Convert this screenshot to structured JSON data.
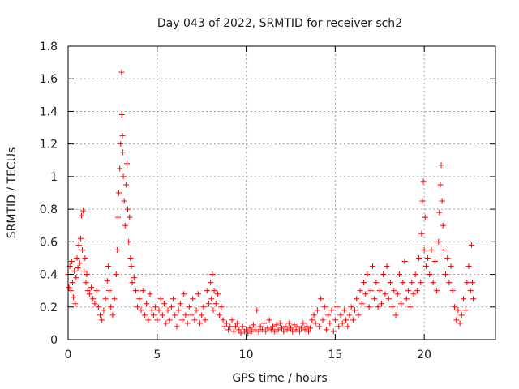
{
  "chart_data": {
    "type": "scatter",
    "title": "Day 043 of 2022, SRMTID for receiver sch2",
    "xlabel": "GPS time / hours",
    "ylabel": "SRMTID / TECUs",
    "xlim": [
      0,
      24
    ],
    "ylim": [
      0,
      1.8
    ],
    "xticks": [
      0,
      5,
      10,
      15,
      20
    ],
    "xtick_labels": [
      "0",
      "5",
      "10",
      "15",
      "20"
    ],
    "yticks": [
      0,
      0.2,
      0.4,
      0.6,
      0.8,
      1.0,
      1.2,
      1.4,
      1.6,
      1.8
    ],
    "ytick_labels": [
      "0",
      "0.2",
      "0.4",
      "0.6",
      "0.8",
      "1",
      "1.2",
      "1.4",
      "1.6",
      "1.8"
    ],
    "grid": true,
    "marker": "+",
    "series": [
      {
        "name": "SRMTID",
        "color": "#ff0000",
        "points": [
          [
            0.0,
            0.4
          ],
          [
            0.05,
            0.32
          ],
          [
            0.1,
            0.45
          ],
          [
            0.15,
            0.3
          ],
          [
            0.2,
            0.48
          ],
          [
            0.25,
            0.35
          ],
          [
            0.3,
            0.26
          ],
          [
            0.35,
            0.42
          ],
          [
            0.4,
            0.22
          ],
          [
            0.45,
            0.38
          ],
          [
            0.5,
            0.5
          ],
          [
            0.55,
            0.44
          ],
          [
            0.6,
            0.58
          ],
          [
            0.65,
            0.47
          ],
          [
            0.7,
            0.62
          ],
          [
            0.75,
            0.76
          ],
          [
            0.8,
            0.55
          ],
          [
            0.85,
            0.79
          ],
          [
            0.9,
            0.42
          ],
          [
            0.95,
            0.5
          ],
          [
            1.0,
            0.35
          ],
          [
            1.05,
            0.4
          ],
          [
            1.1,
            0.3
          ],
          [
            1.2,
            0.28
          ],
          [
            1.3,
            0.32
          ],
          [
            1.4,
            0.25
          ],
          [
            1.5,
            0.22
          ],
          [
            1.6,
            0.3
          ],
          [
            1.7,
            0.2
          ],
          [
            1.8,
            0.15
          ],
          [
            1.9,
            0.12
          ],
          [
            2.0,
            0.18
          ],
          [
            2.1,
            0.25
          ],
          [
            2.2,
            0.36
          ],
          [
            2.25,
            0.45
          ],
          [
            2.3,
            0.3
          ],
          [
            2.4,
            0.2
          ],
          [
            2.5,
            0.15
          ],
          [
            2.6,
            0.25
          ],
          [
            2.7,
            0.4
          ],
          [
            2.75,
            0.55
          ],
          [
            2.8,
            0.75
          ],
          [
            2.85,
            0.9
          ],
          [
            2.9,
            1.05
          ],
          [
            2.95,
            1.2
          ],
          [
            3.0,
            1.64
          ],
          [
            3.02,
            1.38
          ],
          [
            3.05,
            1.25
          ],
          [
            3.08,
            1.15
          ],
          [
            3.1,
            1.0
          ],
          [
            3.15,
            0.85
          ],
          [
            3.2,
            0.7
          ],
          [
            3.25,
            0.95
          ],
          [
            3.3,
            1.08
          ],
          [
            3.35,
            0.8
          ],
          [
            3.4,
            0.6
          ],
          [
            3.45,
            0.75
          ],
          [
            3.5,
            0.5
          ],
          [
            3.55,
            0.45
          ],
          [
            3.6,
            0.35
          ],
          [
            3.7,
            0.38
          ],
          [
            3.8,
            0.3
          ],
          [
            3.9,
            0.2
          ],
          [
            4.0,
            0.25
          ],
          [
            4.1,
            0.18
          ],
          [
            4.2,
            0.3
          ],
          [
            4.3,
            0.15
          ],
          [
            4.4,
            0.22
          ],
          [
            4.5,
            0.12
          ],
          [
            4.6,
            0.28
          ],
          [
            4.7,
            0.18
          ],
          [
            4.8,
            0.15
          ],
          [
            4.9,
            0.2
          ],
          [
            5.0,
            0.12
          ],
          [
            5.1,
            0.18
          ],
          [
            5.2,
            0.25
          ],
          [
            5.3,
            0.15
          ],
          [
            5.4,
            0.22
          ],
          [
            5.5,
            0.1
          ],
          [
            5.6,
            0.18
          ],
          [
            5.7,
            0.12
          ],
          [
            5.8,
            0.2
          ],
          [
            5.9,
            0.25
          ],
          [
            6.0,
            0.15
          ],
          [
            6.1,
            0.08
          ],
          [
            6.2,
            0.18
          ],
          [
            6.3,
            0.22
          ],
          [
            6.4,
            0.12
          ],
          [
            6.5,
            0.28
          ],
          [
            6.6,
            0.15
          ],
          [
            6.7,
            0.1
          ],
          [
            6.8,
            0.2
          ],
          [
            6.9,
            0.15
          ],
          [
            7.0,
            0.25
          ],
          [
            7.1,
            0.12
          ],
          [
            7.2,
            0.18
          ],
          [
            7.3,
            0.28
          ],
          [
            7.4,
            0.1
          ],
          [
            7.5,
            0.15
          ],
          [
            7.6,
            0.2
          ],
          [
            7.7,
            0.12
          ],
          [
            7.8,
            0.3
          ],
          [
            7.9,
            0.22
          ],
          [
            8.0,
            0.35
          ],
          [
            8.05,
            0.25
          ],
          [
            8.1,
            0.4
          ],
          [
            8.15,
            0.18
          ],
          [
            8.2,
            0.3
          ],
          [
            8.3,
            0.22
          ],
          [
            8.4,
            0.28
          ],
          [
            8.5,
            0.15
          ],
          [
            8.6,
            0.2
          ],
          [
            8.7,
            0.12
          ],
          [
            8.8,
            0.08
          ],
          [
            8.9,
            0.1
          ],
          [
            9.0,
            0.06
          ],
          [
            9.1,
            0.08
          ],
          [
            9.2,
            0.12
          ],
          [
            9.3,
            0.05
          ],
          [
            9.4,
            0.08
          ],
          [
            9.5,
            0.1
          ],
          [
            9.6,
            0.06
          ],
          [
            9.7,
            0.04
          ],
          [
            9.8,
            0.08
          ],
          [
            9.9,
            0.05
          ],
          [
            10.0,
            0.06
          ],
          [
            10.1,
            0.04
          ],
          [
            10.2,
            0.07
          ],
          [
            10.3,
            0.05
          ],
          [
            10.4,
            0.09
          ],
          [
            10.5,
            0.06
          ],
          [
            10.6,
            0.18
          ],
          [
            10.7,
            0.05
          ],
          [
            10.8,
            0.08
          ],
          [
            10.9,
            0.06
          ],
          [
            11.0,
            0.1
          ],
          [
            11.1,
            0.05
          ],
          [
            11.2,
            0.07
          ],
          [
            11.3,
            0.12
          ],
          [
            11.4,
            0.06
          ],
          [
            11.5,
            0.08
          ],
          [
            11.6,
            0.05
          ],
          [
            11.7,
            0.09
          ],
          [
            11.8,
            0.06
          ],
          [
            11.9,
            0.1
          ],
          [
            12.0,
            0.07
          ],
          [
            12.1,
            0.05
          ],
          [
            12.2,
            0.08
          ],
          [
            12.3,
            0.06
          ],
          [
            12.4,
            0.1
          ],
          [
            12.5,
            0.07
          ],
          [
            12.6,
            0.05
          ],
          [
            12.7,
            0.09
          ],
          [
            12.8,
            0.06
          ],
          [
            12.9,
            0.08
          ],
          [
            13.0,
            0.05
          ],
          [
            13.1,
            0.07
          ],
          [
            13.2,
            0.1
          ],
          [
            13.3,
            0.06
          ],
          [
            13.4,
            0.08
          ],
          [
            13.5,
            0.05
          ],
          [
            13.6,
            0.07
          ],
          [
            13.7,
            0.12
          ],
          [
            13.8,
            0.15
          ],
          [
            13.9,
            0.1
          ],
          [
            14.0,
            0.18
          ],
          [
            14.1,
            0.08
          ],
          [
            14.2,
            0.25
          ],
          [
            14.3,
            0.12
          ],
          [
            14.4,
            0.2
          ],
          [
            14.5,
            0.06
          ],
          [
            14.6,
            0.15
          ],
          [
            14.7,
            0.1
          ],
          [
            14.8,
            0.18
          ],
          [
            14.9,
            0.05
          ],
          [
            15.0,
            0.12
          ],
          [
            15.1,
            0.2
          ],
          [
            15.2,
            0.08
          ],
          [
            15.3,
            0.15
          ],
          [
            15.4,
            0.1
          ],
          [
            15.5,
            0.18
          ],
          [
            15.6,
            0.12
          ],
          [
            15.7,
            0.08
          ],
          [
            15.8,
            0.15
          ],
          [
            15.9,
            0.2
          ],
          [
            16.0,
            0.12
          ],
          [
            16.1,
            0.18
          ],
          [
            16.2,
            0.25
          ],
          [
            16.3,
            0.15
          ],
          [
            16.4,
            0.3
          ],
          [
            16.5,
            0.22
          ],
          [
            16.6,
            0.35
          ],
          [
            16.7,
            0.28
          ],
          [
            16.8,
            0.4
          ],
          [
            16.9,
            0.2
          ],
          [
            17.0,
            0.3
          ],
          [
            17.1,
            0.45
          ],
          [
            17.2,
            0.25
          ],
          [
            17.3,
            0.35
          ],
          [
            17.4,
            0.2
          ],
          [
            17.5,
            0.3
          ],
          [
            17.6,
            0.22
          ],
          [
            17.7,
            0.4
          ],
          [
            17.8,
            0.28
          ],
          [
            17.9,
            0.45
          ],
          [
            18.0,
            0.25
          ],
          [
            18.1,
            0.35
          ],
          [
            18.2,
            0.2
          ],
          [
            18.3,
            0.3
          ],
          [
            18.4,
            0.15
          ],
          [
            18.5,
            0.28
          ],
          [
            18.6,
            0.4
          ],
          [
            18.7,
            0.22
          ],
          [
            18.8,
            0.35
          ],
          [
            18.9,
            0.48
          ],
          [
            19.0,
            0.25
          ],
          [
            19.1,
            0.3
          ],
          [
            19.2,
            0.2
          ],
          [
            19.3,
            0.35
          ],
          [
            19.4,
            0.28
          ],
          [
            19.5,
            0.4
          ],
          [
            19.6,
            0.3
          ],
          [
            19.7,
            0.5
          ],
          [
            19.8,
            0.35
          ],
          [
            19.85,
            0.65
          ],
          [
            19.9,
            0.85
          ],
          [
            19.95,
            0.97
          ],
          [
            20.0,
            0.55
          ],
          [
            20.05,
            0.75
          ],
          [
            20.1,
            0.45
          ],
          [
            20.2,
            0.5
          ],
          [
            20.3,
            0.4
          ],
          [
            20.4,
            0.55
          ],
          [
            20.5,
            0.35
          ],
          [
            20.6,
            0.48
          ],
          [
            20.7,
            0.3
          ],
          [
            20.8,
            0.6
          ],
          [
            20.85,
            0.78
          ],
          [
            20.9,
            0.95
          ],
          [
            20.95,
            1.07
          ],
          [
            21.0,
            0.85
          ],
          [
            21.05,
            0.7
          ],
          [
            21.1,
            0.55
          ],
          [
            21.2,
            0.4
          ],
          [
            21.3,
            0.5
          ],
          [
            21.4,
            0.35
          ],
          [
            21.5,
            0.45
          ],
          [
            21.6,
            0.3
          ],
          [
            21.7,
            0.2
          ],
          [
            21.8,
            0.12
          ],
          [
            21.9,
            0.18
          ],
          [
            22.0,
            0.1
          ],
          [
            22.1,
            0.15
          ],
          [
            22.2,
            0.25
          ],
          [
            22.3,
            0.18
          ],
          [
            22.4,
            0.35
          ],
          [
            22.5,
            0.45
          ],
          [
            22.6,
            0.3
          ],
          [
            22.65,
            0.58
          ],
          [
            22.7,
            0.35
          ],
          [
            22.75,
            0.25
          ]
        ]
      }
    ]
  }
}
